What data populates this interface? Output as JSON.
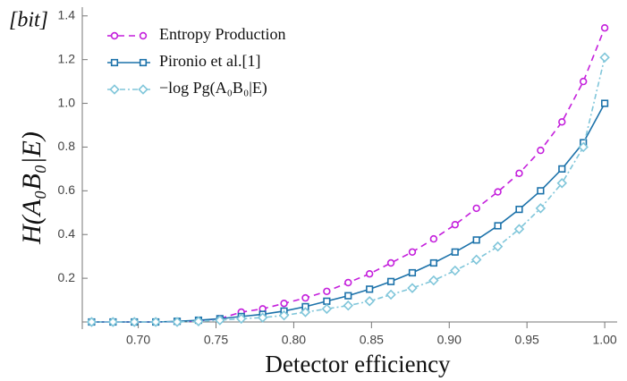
{
  "chart_data": {
    "type": "line",
    "y_unit_label": "[bit]",
    "xlabel": "Detector efficiency",
    "ylabel": "H(A₀B₀|E)",
    "x": [
      0.67,
      0.68375,
      0.6975,
      0.71125,
      0.725,
      0.73875,
      0.7525,
      0.76625,
      0.78,
      0.79375,
      0.8075,
      0.82125,
      0.835,
      0.84875,
      0.8625,
      0.87625,
      0.89,
      0.90375,
      0.9175,
      0.93125,
      0.945,
      0.95875,
      0.9725,
      0.98625,
      1.0
    ],
    "series": [
      {
        "name": "Entropy Production",
        "color": "#c41fdc",
        "marker": "circle",
        "dash": "7,5",
        "values": [
          0,
          0,
          0,
          0,
          0,
          0.005,
          0.015,
          0.045,
          0.06,
          0.085,
          0.11,
          0.14,
          0.18,
          0.22,
          0.27,
          0.32,
          0.38,
          0.445,
          0.52,
          0.595,
          0.68,
          0.785,
          0.915,
          1.1,
          1.345
        ]
      },
      {
        "name": "Pironio et al.[1]",
        "color": "#1c72aa",
        "marker": "square",
        "dash": "none",
        "values": [
          0,
          0,
          0,
          0,
          0.003,
          0.008,
          0.015,
          0.025,
          0.035,
          0.05,
          0.07,
          0.095,
          0.12,
          0.15,
          0.185,
          0.225,
          0.27,
          0.32,
          0.375,
          0.44,
          0.515,
          0.6,
          0.7,
          0.82,
          1.0
        ]
      },
      {
        "name": "−log Pg(A₀B₀|E)",
        "color": "#80c6da",
        "marker": "diamond",
        "dash": "6,3,2,3",
        "values": [
          0,
          0,
          0,
          0,
          0,
          0.003,
          0.008,
          0.015,
          0.02,
          0.03,
          0.045,
          0.06,
          0.075,
          0.095,
          0.125,
          0.155,
          0.19,
          0.235,
          0.285,
          0.345,
          0.425,
          0.52,
          0.635,
          0.8,
          1.21
        ]
      }
    ],
    "xlim": [
      0.664,
      1.008
    ],
    "ylim": [
      0,
      1.44
    ],
    "xticks": [
      {
        "value": 0.7,
        "label": "0.70"
      },
      {
        "value": 0.75,
        "label": "0.75"
      },
      {
        "value": 0.8,
        "label": "0.80"
      },
      {
        "value": 0.85,
        "label": "0.85"
      },
      {
        "value": 0.9,
        "label": "0.90"
      },
      {
        "value": 0.95,
        "label": "0.95"
      },
      {
        "value": 1.0,
        "label": "1.00"
      }
    ],
    "yticks": [
      0.2,
      0.4,
      0.6,
      0.8,
      {
        "value": 1.0,
        "label": "1.0"
      },
      1.2,
      1.4
    ],
    "legend": "upper left"
  }
}
